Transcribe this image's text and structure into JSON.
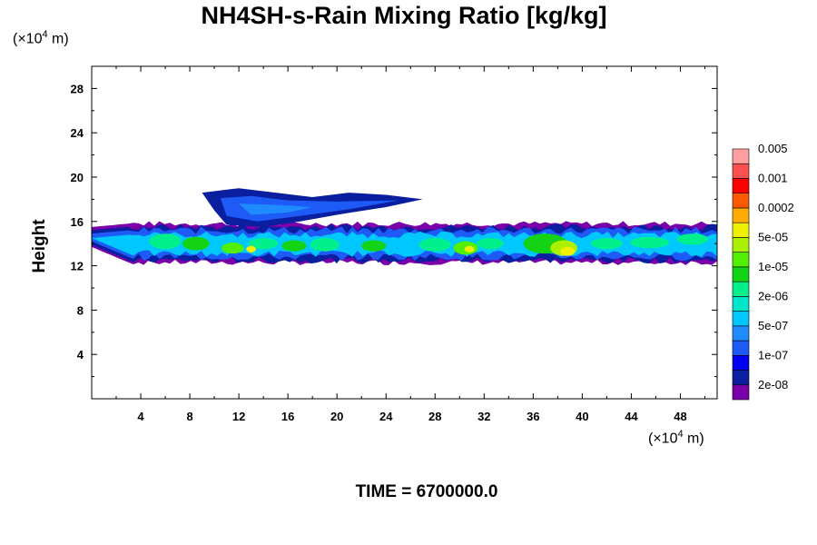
{
  "chart_data": {
    "type": "heatmap",
    "title": "NH4SH-s-Rain Mixing Ratio [kg/kg]",
    "ylabel": "Height",
    "xlabel": "",
    "x_unit": {
      "prefix": "(×10",
      "exp": "4",
      "suffix": " m)"
    },
    "y_unit": {
      "prefix": "(×10",
      "exp": "4",
      "suffix": " m)"
    },
    "xlim": [
      0,
      51
    ],
    "ylim": [
      0,
      30
    ],
    "x_ticks": [
      4,
      8,
      12,
      16,
      20,
      24,
      28,
      32,
      36,
      40,
      44,
      48
    ],
    "y_ticks": [
      4,
      8,
      12,
      16,
      20,
      24,
      28
    ],
    "colorbar": {
      "colors": [
        "#7a00aa",
        "#0a1ea0",
        "#0000f0",
        "#1e5af5",
        "#1e8cff",
        "#00c8ff",
        "#00e6c8",
        "#00f08c",
        "#14d214",
        "#50f000",
        "#aaf000",
        "#f0f000",
        "#ffaa00",
        "#ff5a00",
        "#ff0000",
        "#ff5050",
        "#ffa0a0"
      ],
      "labels": [
        "2e-08",
        "1e-07",
        "5e-07",
        "2e-06",
        "1e-05",
        "5e-05",
        "0.0002",
        "0.001",
        "0.005"
      ]
    },
    "cloud_layers": [
      {
        "x": [
          0,
          51
        ],
        "y": [
          12.5,
          15.5
        ],
        "note_level": "2e-08"
      }
    ],
    "time": "TIME = 6700000.0"
  }
}
